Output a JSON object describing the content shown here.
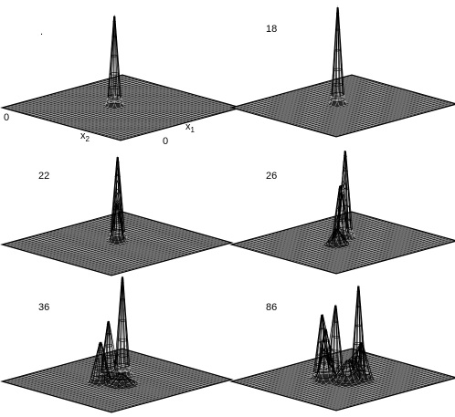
{
  "figure": {
    "panels": [
      {
        "label": "",
        "dot": "."
      },
      {
        "label": "18"
      },
      {
        "label": "22"
      },
      {
        "label": "26"
      },
      {
        "label": "36"
      },
      {
        "label": "86"
      }
    ],
    "axis_labels": {
      "origin_left": "0",
      "origin_right": "0",
      "x2_base": "x",
      "x2_sub": "2",
      "x1_base": "x",
      "x1_sub": "1"
    },
    "colors": {
      "mesh": "#000000",
      "background": "#ffffff"
    }
  }
}
